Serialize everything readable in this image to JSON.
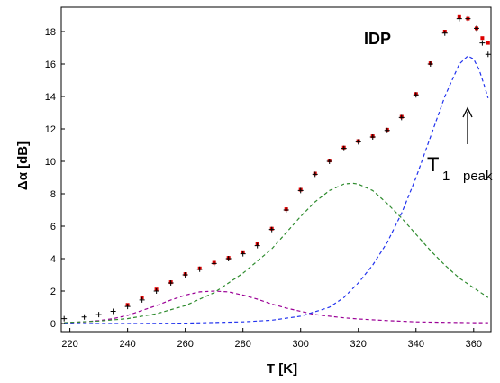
{
  "chart_data": {
    "type": "scatter",
    "title": "",
    "xlabel": "T [K]",
    "ylabel": "Δα [dB]",
    "xlim": [
      217,
      366
    ],
    "ylim": [
      -0.5,
      19.5
    ],
    "x_ticks": [
      220,
      240,
      260,
      280,
      300,
      320,
      340,
      360
    ],
    "y_ticks": [
      0,
      2,
      4,
      6,
      8,
      10,
      12,
      14,
      16,
      18
    ],
    "grid": false,
    "annotations": {
      "sample_label": "IDP",
      "peak_label_main": "T",
      "peak_label_sub1": "1",
      "peak_label_sub2": "peak",
      "arrow_at_x": 358
    },
    "series": [
      {
        "style": "markers",
        "marker": "cross",
        "color": "#000000",
        "x": [
          218,
          225,
          230,
          235,
          240,
          245,
          250,
          255,
          260,
          265,
          270,
          275,
          280,
          285,
          290,
          295,
          300,
          305,
          310,
          315,
          320,
          325,
          330,
          335,
          340,
          345,
          350,
          355,
          358,
          361,
          363,
          365
        ],
        "y": [
          0.3,
          0.4,
          0.55,
          0.75,
          1.05,
          1.45,
          2.0,
          2.5,
          3.0,
          3.35,
          3.7,
          4.0,
          4.3,
          4.8,
          5.8,
          7.0,
          8.2,
          9.2,
          10.0,
          10.8,
          11.2,
          11.5,
          11.9,
          12.7,
          14.1,
          16.0,
          17.9,
          18.8,
          18.8,
          18.2,
          17.3,
          16.6
        ]
      },
      {
        "style": "markers",
        "marker": "square",
        "color": "#dd0000",
        "x": [
          240,
          245,
          250,
          255,
          260,
          265,
          270,
          275,
          280,
          285,
          290,
          295,
          300,
          305,
          310,
          315,
          320,
          325,
          330,
          335,
          340,
          345,
          350,
          355,
          358,
          361,
          363,
          365
        ],
        "y": [
          1.15,
          1.6,
          2.1,
          2.55,
          3.05,
          3.4,
          3.75,
          4.05,
          4.4,
          4.9,
          5.85,
          7.05,
          8.25,
          9.25,
          10.05,
          10.85,
          11.25,
          11.55,
          11.95,
          12.75,
          14.15,
          16.05,
          18.0,
          18.9,
          18.8,
          18.2,
          17.6,
          17.3
        ]
      },
      {
        "style": "dashed",
        "color": "#9b0096",
        "x": [
          218,
          225,
          230,
          235,
          240,
          245,
          250,
          255,
          260,
          265,
          270,
          275,
          280,
          285,
          290,
          295,
          300,
          305,
          310,
          315,
          320,
          330,
          340,
          350,
          360,
          365
        ],
        "y": [
          0.05,
          0.1,
          0.18,
          0.3,
          0.5,
          0.8,
          1.1,
          1.45,
          1.75,
          1.95,
          2.0,
          1.95,
          1.75,
          1.5,
          1.2,
          0.95,
          0.75,
          0.55,
          0.45,
          0.35,
          0.28,
          0.18,
          0.1,
          0.07,
          0.05,
          0.05
        ]
      },
      {
        "style": "dashed",
        "color": "#2e8b2e",
        "x": [
          218,
          230,
          240,
          250,
          260,
          270,
          280,
          290,
          300,
          305,
          310,
          315,
          318,
          320,
          325,
          330,
          335,
          340,
          345,
          350,
          355,
          360,
          365
        ],
        "y": [
          0.05,
          0.15,
          0.3,
          0.6,
          1.1,
          1.9,
          3.1,
          4.6,
          6.6,
          7.5,
          8.2,
          8.6,
          8.65,
          8.6,
          8.2,
          7.4,
          6.5,
          5.5,
          4.5,
          3.6,
          2.8,
          2.2,
          1.6
        ]
      },
      {
        "style": "dashed",
        "color": "#2233ee",
        "x": [
          218,
          240,
          260,
          280,
          290,
          300,
          310,
          315,
          320,
          325,
          330,
          335,
          340,
          345,
          350,
          355,
          358,
          360,
          362,
          364,
          365
        ],
        "y": [
          0.0,
          0.0,
          0.02,
          0.1,
          0.2,
          0.45,
          1.0,
          1.6,
          2.5,
          3.6,
          5.0,
          6.8,
          9.0,
          11.5,
          14.0,
          16.0,
          16.5,
          16.3,
          15.6,
          14.5,
          13.9
        ]
      }
    ]
  }
}
